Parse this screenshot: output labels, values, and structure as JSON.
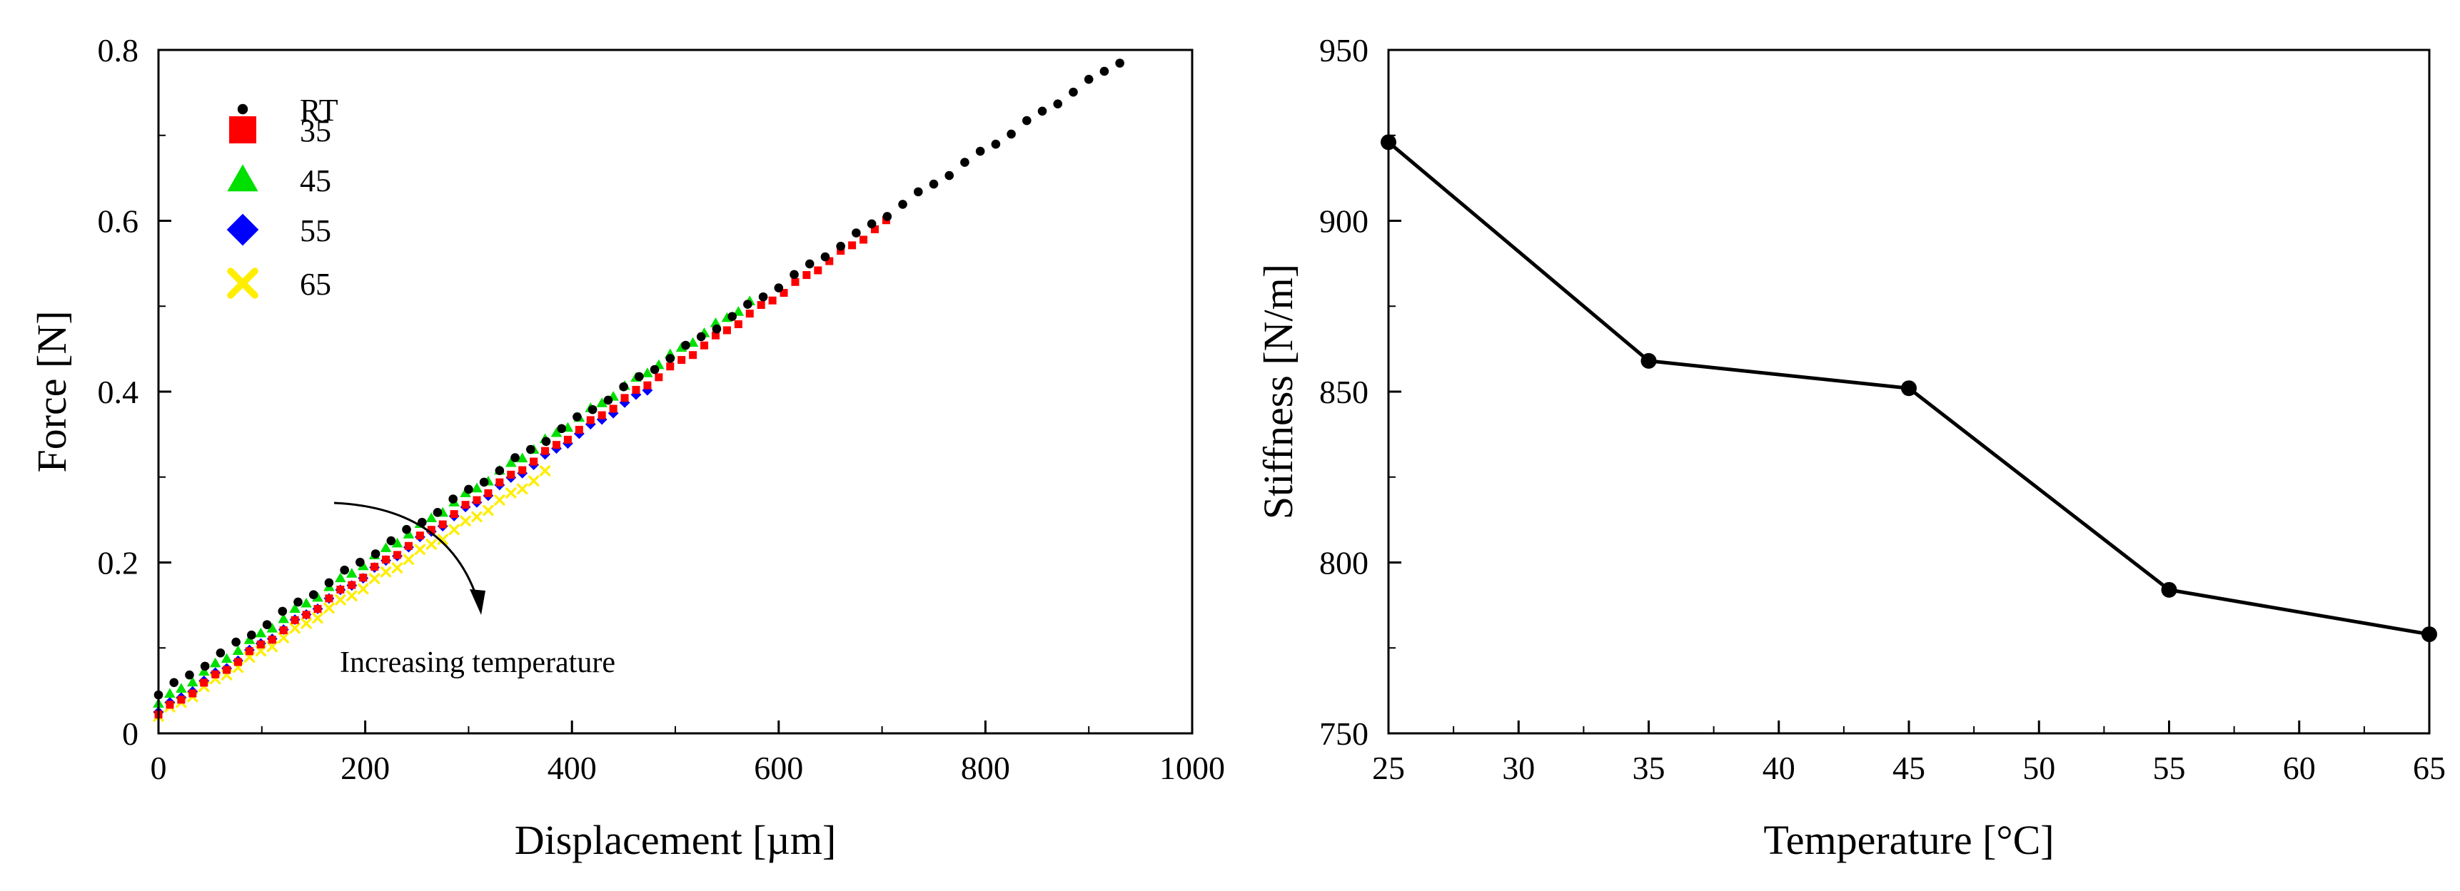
{
  "chart_data": [
    {
      "type": "scatter",
      "title": "",
      "xlabel": "Displacement [µm]",
      "ylabel": "Force [N]",
      "xlim": [
        0,
        1000
      ],
      "ylim": [
        0,
        0.8
      ],
      "xticks": [
        "0",
        "200",
        "400",
        "600",
        "800",
        "1000"
      ],
      "yticks": [
        "0",
        "0.2",
        "0.4",
        "0.6",
        "0.8"
      ],
      "legend_position": "top-left",
      "annotation": "Increasing temperature",
      "series": [
        {
          "name": "RT",
          "marker": "dot",
          "color": "#000000",
          "x_start": 0,
          "x_end": 940,
          "y_start": 0.045,
          "y_end": 0.795,
          "spacing": 15
        },
        {
          "name": "35",
          "marker": "square",
          "color": "#ff0000",
          "x_start": 0,
          "x_end": 706,
          "y_start": 0.022,
          "y_end": 0.6,
          "spacing": 11
        },
        {
          "name": "45",
          "marker": "triangle",
          "color": "#00e000",
          "x_start": 0,
          "x_end": 572,
          "y_start": 0.035,
          "y_end": 0.505,
          "spacing": 11
        },
        {
          "name": "55",
          "marker": "diamond",
          "color": "#0000ff",
          "x_start": 0,
          "x_end": 475,
          "y_start": 0.025,
          "y_end": 0.405,
          "spacing": 11
        },
        {
          "name": "65",
          "marker": "x",
          "color": "#ffee00",
          "x_start": 0,
          "x_end": 378,
          "y_start": 0.02,
          "y_end": 0.308,
          "spacing": 11
        }
      ]
    },
    {
      "type": "line",
      "title": "",
      "xlabel": "Temperature [°C]",
      "ylabel": "Stiffness [N/m]",
      "xlim": [
        25,
        65
      ],
      "ylim": [
        750,
        950
      ],
      "xticks": [
        "25",
        "30",
        "35",
        "40",
        "45",
        "50",
        "55",
        "60",
        "65"
      ],
      "yticks": [
        "750",
        "800",
        "850",
        "900",
        "950"
      ],
      "x": [
        25,
        35,
        45,
        55,
        65
      ],
      "values": [
        923,
        859,
        851,
        792,
        779
      ],
      "color": "#000000"
    }
  ]
}
